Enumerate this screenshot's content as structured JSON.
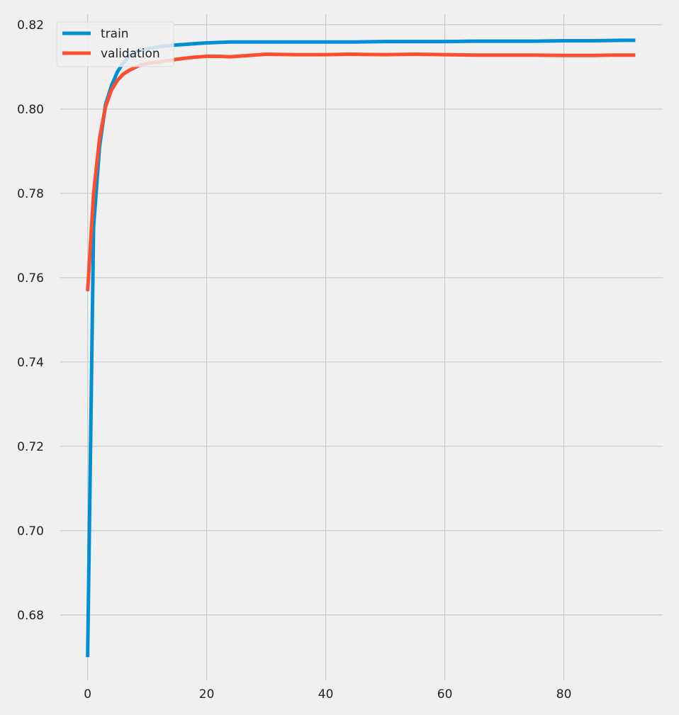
{
  "chart_data": {
    "type": "line",
    "title": "",
    "xlabel": "",
    "ylabel": "",
    "xlim": [
      -4.6,
      96.6
    ],
    "ylim": [
      0.6645,
      0.8225
    ],
    "x_ticks": [
      0,
      20,
      40,
      60,
      80
    ],
    "y_ticks": [
      0.68,
      0.7,
      0.72,
      0.74,
      0.76,
      0.78,
      0.8,
      0.82
    ],
    "x_tick_labels": [
      "0",
      "20",
      "40",
      "60",
      "80"
    ],
    "y_tick_labels": [
      "0.68",
      "0.70",
      "0.72",
      "0.74",
      "0.76",
      "0.78",
      "0.80",
      "0.82"
    ],
    "grid": true,
    "legend": {
      "placement": "upper-left",
      "entries": [
        "train",
        "validation"
      ]
    },
    "series": [
      {
        "name": "train",
        "color": "#008fd5",
        "points": [
          [
            0,
            0.67
          ],
          [
            1,
            0.772
          ],
          [
            2,
            0.791
          ],
          [
            3,
            0.801
          ],
          [
            4,
            0.8055
          ],
          [
            5,
            0.8088
          ],
          [
            6,
            0.811
          ],
          [
            7,
            0.8125
          ],
          [
            8,
            0.8135
          ],
          [
            9,
            0.814
          ],
          [
            10,
            0.8143
          ],
          [
            12,
            0.8148
          ],
          [
            14,
            0.8151
          ],
          [
            16,
            0.8153
          ],
          [
            18,
            0.8155
          ],
          [
            20,
            0.8157
          ],
          [
            22,
            0.8158
          ],
          [
            24,
            0.8159
          ],
          [
            26,
            0.8159
          ],
          [
            28,
            0.8159
          ],
          [
            30,
            0.8159
          ],
          [
            35,
            0.8159
          ],
          [
            40,
            0.8159
          ],
          [
            45,
            0.8159
          ],
          [
            50,
            0.816
          ],
          [
            55,
            0.816
          ],
          [
            60,
            0.816
          ],
          [
            65,
            0.8161
          ],
          [
            70,
            0.8161
          ],
          [
            75,
            0.8161
          ],
          [
            80,
            0.8162
          ],
          [
            85,
            0.8162
          ],
          [
            90,
            0.8163
          ],
          [
            92,
            0.8163
          ]
        ]
      },
      {
        "name": "validation",
        "color": "#fc4f30",
        "points": [
          [
            0,
            0.7568
          ],
          [
            1,
            0.78
          ],
          [
            2,
            0.793
          ],
          [
            3,
            0.8005
          ],
          [
            4,
            0.8045
          ],
          [
            5,
            0.8068
          ],
          [
            6,
            0.8083
          ],
          [
            7,
            0.8092
          ],
          [
            8,
            0.8099
          ],
          [
            9,
            0.8105
          ],
          [
            10,
            0.8108
          ],
          [
            12,
            0.8112
          ],
          [
            14,
            0.8116
          ],
          [
            16,
            0.812
          ],
          [
            18,
            0.8123
          ],
          [
            20,
            0.8125
          ],
          [
            22,
            0.8125
          ],
          [
            24,
            0.8124
          ],
          [
            26,
            0.8126
          ],
          [
            28,
            0.8128
          ],
          [
            30,
            0.813
          ],
          [
            35,
            0.8129
          ],
          [
            40,
            0.8129
          ],
          [
            44,
            0.813
          ],
          [
            50,
            0.8129
          ],
          [
            55,
            0.813
          ],
          [
            60,
            0.8129
          ],
          [
            65,
            0.8128
          ],
          [
            70,
            0.8128
          ],
          [
            75,
            0.8128
          ],
          [
            80,
            0.8127
          ],
          [
            85,
            0.8127
          ],
          [
            88,
            0.8128
          ],
          [
            90,
            0.8128
          ],
          [
            92,
            0.8128
          ]
        ]
      }
    ]
  }
}
